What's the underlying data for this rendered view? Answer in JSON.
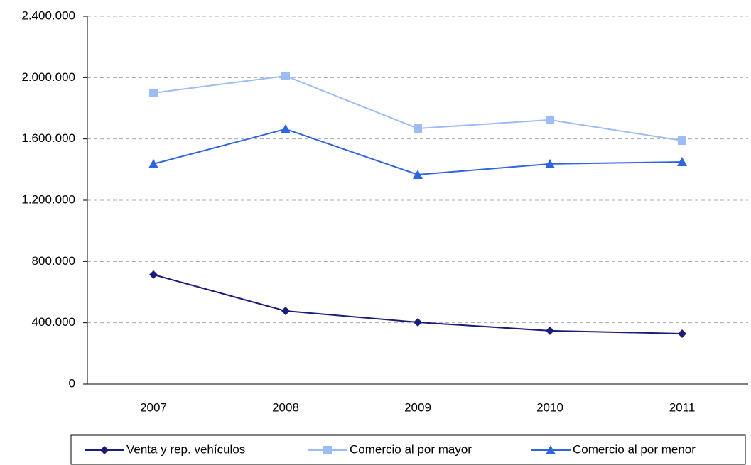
{
  "chart_data": {
    "type": "line",
    "categories": [
      "2007",
      "2008",
      "2009",
      "2010",
      "2011"
    ],
    "series": [
      {
        "name": "Venta y rep. vehículos",
        "color": "#1b1b78",
        "marker": "diamond",
        "values": [
          714000,
          477000,
          403000,
          348000,
          329000
        ]
      },
      {
        "name": "Comercio al por mayor",
        "color": "#9dbcf5",
        "marker": "square",
        "values": [
          1900000,
          2011000,
          1668000,
          1724000,
          1589000
        ]
      },
      {
        "name": "Comercio al por menor",
        "color": "#2f66e0",
        "marker": "triangle",
        "values": [
          1437000,
          1664000,
          1367000,
          1437000,
          1450000
        ]
      }
    ],
    "ylim": [
      0,
      2400000
    ],
    "yticks": [
      0,
      {
        "value": 400000,
        "label": "400.000"
      },
      {
        "value": 800000,
        "label": "800.000"
      },
      {
        "value": 1200000,
        "label": "1.200.000"
      },
      {
        "value": 1600000,
        "label": "1.600.000"
      },
      {
        "value": 2000000,
        "label": "2.000.000"
      },
      {
        "value": 2400000,
        "label": "2.400.000"
      }
    ],
    "grid": true,
    "legend": "bottom"
  }
}
